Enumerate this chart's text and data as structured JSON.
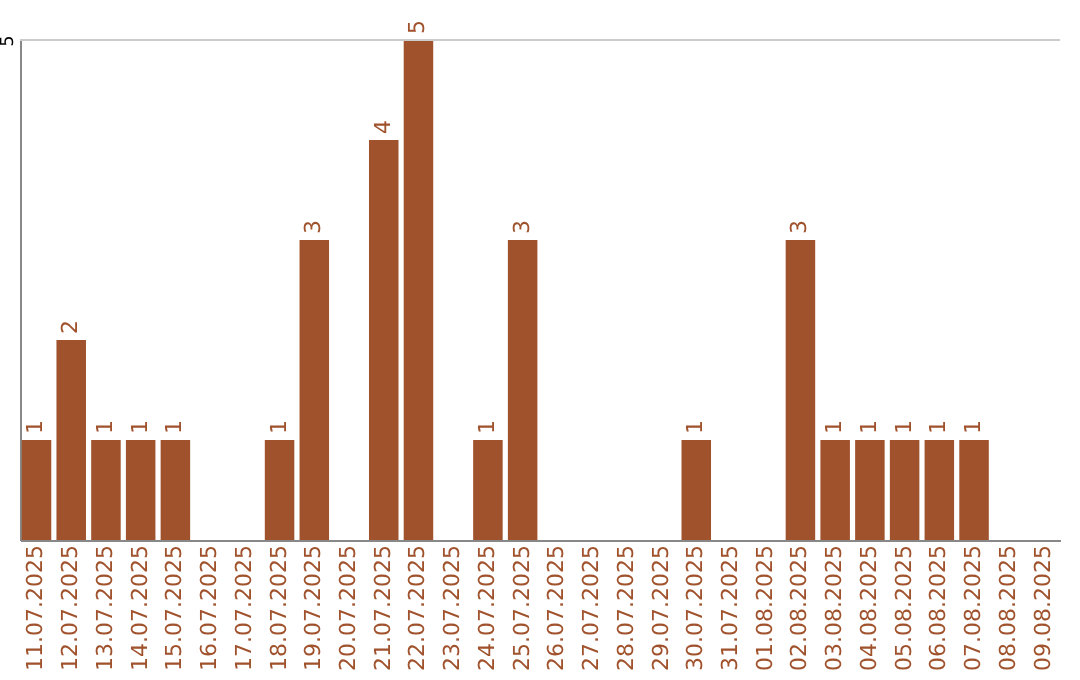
{
  "chart_data": {
    "type": "bar",
    "categories": [
      "11.07.2025",
      "12.07.2025",
      "13.07.2025",
      "14.07.2025",
      "15.07.2025",
      "16.07.2025",
      "17.07.2025",
      "18.07.2025",
      "19.07.2025",
      "20.07.2025",
      "21.07.2025",
      "22.07.2025",
      "23.07.2025",
      "24.07.2025",
      "25.07.2025",
      "26.07.2025",
      "27.07.2025",
      "28.07.2025",
      "29.07.2025",
      "30.07.2025",
      "31.07.2025",
      "01.08.2025",
      "02.08.2025",
      "03.08.2025",
      "04.08.2025",
      "05.08.2025",
      "06.08.2025",
      "07.08.2025",
      "08.08.2025",
      "09.08.2025"
    ],
    "values": [
      1,
      2,
      1,
      1,
      1,
      null,
      null,
      1,
      3,
      null,
      4,
      5,
      null,
      1,
      3,
      null,
      null,
      null,
      null,
      1,
      null,
      null,
      3,
      1,
      1,
      1,
      1,
      1,
      null,
      null
    ],
    "color": "#a0522d",
    "ylim": [
      0,
      5
    ],
    "yticks": [
      5
    ],
    "data_labels": true,
    "ref_lines": [
      {
        "axis": "y",
        "value": 5,
        "color": "#cccccc"
      }
    ]
  }
}
